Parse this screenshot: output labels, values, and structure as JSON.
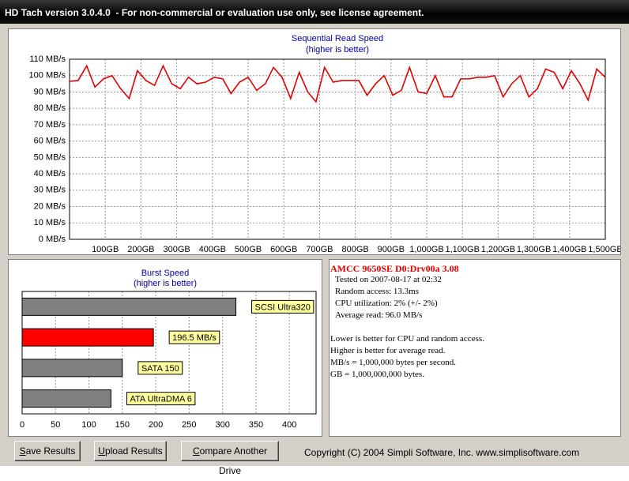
{
  "window": {
    "title": "HD Tach version 3.0.4.0  - For non-commercial or evaluation use only, see license agreement."
  },
  "chart_data": [
    {
      "type": "line",
      "title": "Sequential Read Speed",
      "subtitle": "(higher is better)",
      "color": "#e00000",
      "x": [
        0,
        24,
        48,
        71,
        95,
        119,
        143,
        167,
        190,
        214,
        238,
        262,
        286,
        310,
        333,
        357,
        381,
        405,
        429,
        452,
        476,
        500,
        524,
        548,
        571,
        595,
        619,
        643,
        667,
        690,
        714,
        738,
        762,
        786,
        810,
        833,
        857,
        881,
        905,
        929,
        952,
        976,
        1000,
        1024,
        1048,
        1071,
        1095,
        1119,
        1143,
        1167,
        1190,
        1214,
        1238,
        1262,
        1286,
        1310,
        1333,
        1357,
        1381,
        1405,
        1429,
        1452,
        1476,
        1500
      ],
      "values": [
        96.5,
        97,
        106,
        93,
        98,
        100,
        92,
        86,
        103,
        97,
        94,
        106,
        95,
        92,
        99,
        95,
        96,
        99,
        98,
        89,
        96,
        99,
        91,
        95,
        105,
        99,
        86,
        102,
        90,
        84,
        105,
        96,
        97,
        97,
        97,
        88,
        95,
        100,
        88,
        91,
        105,
        90,
        89,
        100,
        87,
        87,
        98,
        98,
        99,
        99,
        100,
        87,
        95,
        100,
        87,
        92,
        104,
        102,
        92,
        103,
        95,
        85,
        104,
        99
      ],
      "xlim": [
        0,
        1500
      ],
      "ylim": [
        0,
        110
      ],
      "grid": true,
      "xticks": [
        {
          "value": 100,
          "label": "100GB"
        },
        {
          "value": 200,
          "label": "200GB"
        },
        {
          "value": 300,
          "label": "300GB"
        },
        {
          "value": 400,
          "label": "400GB"
        },
        {
          "value": 500,
          "label": "500GB"
        },
        {
          "value": 600,
          "label": "600GB"
        },
        {
          "value": 700,
          "label": "700GB"
        },
        {
          "value": 800,
          "label": "800GB"
        },
        {
          "value": 900,
          "label": "900GB"
        },
        {
          "value": 1000,
          "label": "1,000GB"
        },
        {
          "value": 1100,
          "label": "1,100GB"
        },
        {
          "value": 1200,
          "label": "1,200GB"
        },
        {
          "value": 1300,
          "label": "1,300GB"
        },
        {
          "value": 1400,
          "label": "1,400GB"
        },
        {
          "value": 1500,
          "label": "1,500GB"
        }
      ],
      "yticks": [
        {
          "value": 0,
          "label": "0 MB/s"
        },
        {
          "value": 10,
          "label": "10 MB/s"
        },
        {
          "value": 20,
          "label": "20 MB/s"
        },
        {
          "value": 30,
          "label": "30 MB/s"
        },
        {
          "value": 40,
          "label": "40 MB/s"
        },
        {
          "value": 50,
          "label": "50 MB/s"
        },
        {
          "value": 60,
          "label": "60 MB/s"
        },
        {
          "value": 70,
          "label": "70 MB/s"
        },
        {
          "value": 80,
          "label": "80 MB/s"
        },
        {
          "value": 90,
          "label": "90 MB/s"
        },
        {
          "value": 100,
          "label": "100 MB/s"
        },
        {
          "value": 110,
          "label": "110 MB/s"
        }
      ]
    },
    {
      "type": "bar",
      "orientation": "horizontal",
      "title": "Burst Speed",
      "subtitle": "(higher is better)",
      "categories": [
        "SCSI Ultra320",
        null,
        "SATA 150",
        "ATA UltraDMA 6"
      ],
      "values": [
        320,
        196.5,
        150,
        133
      ],
      "value_labels": [
        null,
        "196.5 MB/s",
        null,
        null
      ],
      "colors": [
        "#808080",
        "#ff0000",
        "#808080",
        "#808080"
      ],
      "xlim": [
        0,
        440
      ],
      "xticks": [
        0,
        50,
        100,
        150,
        200,
        250,
        300,
        350,
        400
      ],
      "grid": true
    }
  ],
  "info": {
    "drive": "AMCC 9650SE D0:Drv00a 3.08",
    "stats": [
      "Tested on 2007-08-17 at 02:32",
      "Random access: 13.3ms",
      "CPU utilization: 2% (+/- 2%)",
      "Average read: 96.0 MB/s"
    ],
    "notes": [
      "Lower is better for CPU and random access.",
      "Higher is better for average read.",
      "MB/s = 1,000,000 bytes per second.",
      "GB = 1,000,000,000 bytes."
    ]
  },
  "buttons": [
    "Save Results",
    "Upload Results",
    "Compare Another Drive"
  ],
  "copyright": "Copyright (C) 2004 Simpli Software, Inc. www.simplisoftware.com"
}
